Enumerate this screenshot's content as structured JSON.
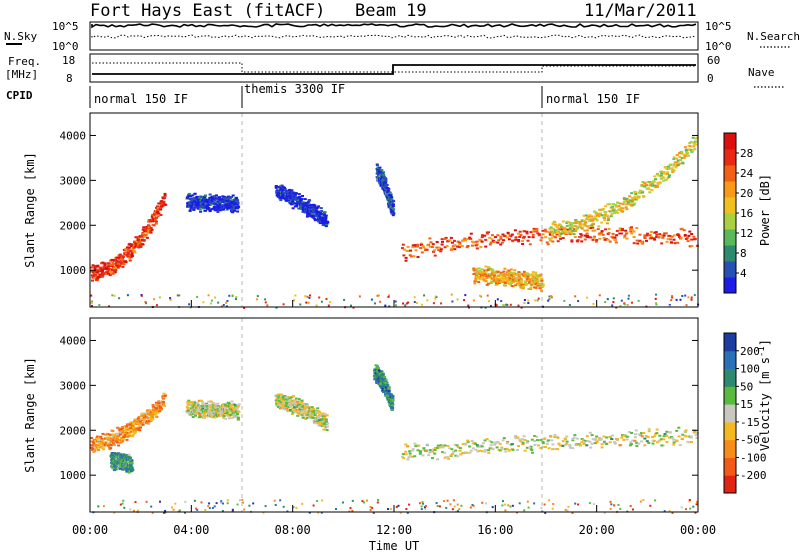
{
  "header": {
    "station": "Fort Hays East (fitACF)",
    "beam": "Beam 19",
    "date": "11/Mar/2011"
  },
  "noise_panel": {
    "left_label": "N.Sky",
    "left_ticks": [
      "10^5",
      "10^0"
    ],
    "right_ticks": [
      "10^5",
      "10^0"
    ],
    "right_label": "N.Search"
  },
  "freq_panel": {
    "left_label_1": "Freq.",
    "left_label_2": "[MHz]",
    "left_ticks": [
      "18",
      "8"
    ],
    "right_ticks": [
      "60",
      "0"
    ],
    "right_label": "Nave"
  },
  "cpid_panel": {
    "label": "CPID",
    "segments": [
      {
        "name": "normal 150 IF",
        "start_hour": 0
      },
      {
        "name": "themis 3300 IF",
        "start_hour": 6
      },
      {
        "name": "normal 150 IF",
        "start_hour": 18
      }
    ]
  },
  "chart_data": [
    {
      "type": "heatmap",
      "name": "power",
      "ylabel": "Slant Range [km]",
      "xlim": [
        0,
        24
      ],
      "ylim": [
        180,
        4500
      ],
      "yticks": [
        1000,
        2000,
        3000,
        4000
      ],
      "colorbar": {
        "label": "Power [dB]",
        "ticks": [
          "4",
          "8",
          "12",
          "16",
          "20",
          "24",
          "28"
        ],
        "colors": [
          "#1c1ce6",
          "#2850b4",
          "#2e8a6e",
          "#5ab85a",
          "#a8d040",
          "#f0c020",
          "#f89a18",
          "#f26018",
          "#e82a14",
          "#dc0e0e"
        ]
      },
      "features": [
        {
          "t0": 0.0,
          "t1": 2.9,
          "r0": 950,
          "r1": 1050,
          "r2": 2600,
          "v": 0.85
        },
        {
          "t0": 12.3,
          "t1": 24.0,
          "r0": 1400,
          "r1": 2700,
          "r2": 1700,
          "v": 0.8
        },
        {
          "t0": 15.1,
          "t1": 17.8,
          "r0": 920,
          "r1": 850,
          "r2": 750,
          "v": 0.6
        },
        {
          "t0": 3.8,
          "t1": 5.8,
          "r0": 2550,
          "r1": 2450,
          "r2": 2500,
          "v": 0.05
        },
        {
          "t0": 7.3,
          "t1": 9.3,
          "r0": 2800,
          "r1": 2300,
          "r2": 2100,
          "v": 0.05
        },
        {
          "t0": 11.3,
          "t1": 11.9,
          "r0": 3200,
          "r1": 2700,
          "r2": 2400,
          "v": 0.15
        },
        {
          "t0": 18.1,
          "t1": 24.0,
          "r0": 1900,
          "r1": 2200,
          "r2": 4000,
          "v": 0.5
        }
      ]
    },
    {
      "type": "heatmap",
      "name": "velocity",
      "ylabel": "Slant Range [km]",
      "xlabel": "Time UT",
      "xlim": [
        0,
        24
      ],
      "ylim": [
        180,
        4500
      ],
      "yticks": [
        1000,
        2000,
        3000,
        4000
      ],
      "xticks": [
        "00:00",
        "04:00",
        "08:00",
        "12:00",
        "16:00",
        "20:00",
        "00:00"
      ],
      "colorbar": {
        "label": "Velocity [m s",
        "label_sup": "-1",
        "label_end": "]",
        "ticks": [
          "200",
          "100",
          "50",
          "15",
          "-15",
          "-50",
          "-100",
          "-200"
        ],
        "colors": [
          "#1c3ca0",
          "#2a70b8",
          "#2e8a6e",
          "#5aba40",
          "#c8c8c0",
          "#f4b820",
          "#f88c18",
          "#f25a18",
          "#e02414"
        ]
      },
      "features": [
        {
          "t0": 0.0,
          "t1": 2.9,
          "r0": 1700,
          "r1": 1900,
          "r2": 2700,
          "v": 0.3
        },
        {
          "t0": 12.3,
          "t1": 24.0,
          "r0": 1500,
          "r1": 2100,
          "r2": 1900,
          "v": 0.5
        },
        {
          "t0": 11.2,
          "t1": 11.9,
          "r0": 3300,
          "r1": 3000,
          "r2": 2600,
          "v": 0.75
        },
        {
          "t0": 0.8,
          "t1": 1.6,
          "r0": 1350,
          "r1": 1300,
          "r2": 1250,
          "v": 0.7
        },
        {
          "t0": 3.8,
          "t1": 5.8,
          "r0": 2500,
          "r1": 2400,
          "r2": 2450,
          "v": 0.5
        },
        {
          "t0": 7.3,
          "t1": 9.3,
          "r0": 2700,
          "r1": 2400,
          "r2": 2200,
          "v": 0.5
        }
      ]
    }
  ]
}
